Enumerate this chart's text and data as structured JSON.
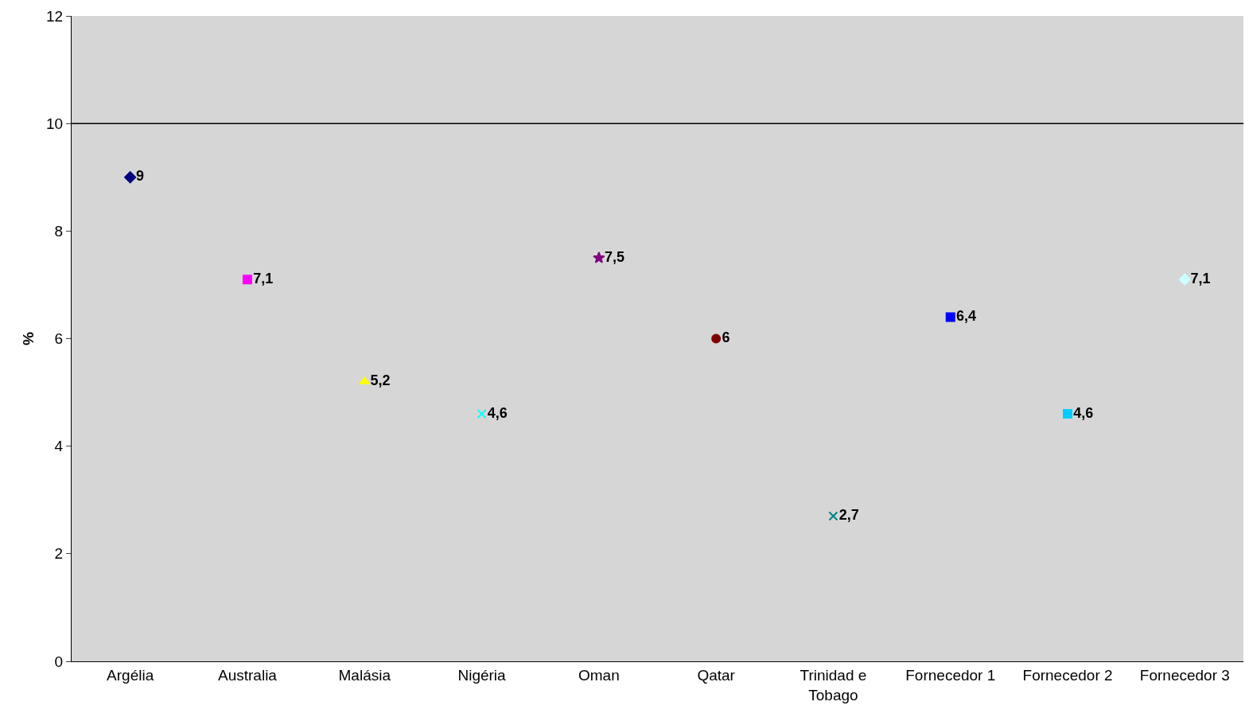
{
  "chart_data": {
    "type": "scatter",
    "ylabel": "%",
    "categories": [
      "Argélia",
      "Australia",
      "Malásia",
      "Nigéria",
      "Oman",
      "Qatar",
      "Trinidad e Tobago",
      "Fornecedor 1",
      "Fornecedor 2",
      "Fornecedor 3"
    ],
    "series": [
      {
        "color": "#000080",
        "marker": "diamond",
        "values": [
          9,
          null,
          null,
          null,
          null,
          null,
          null,
          null,
          null,
          null
        ],
        "value_labels": [
          "9",
          null,
          null,
          null,
          null,
          null,
          null,
          null,
          null,
          null
        ]
      },
      {
        "color": "#ff00ff",
        "marker": "square",
        "values": [
          null,
          7.1,
          null,
          null,
          null,
          null,
          null,
          null,
          null,
          null
        ],
        "value_labels": [
          null,
          "7,1",
          null,
          null,
          null,
          null,
          null,
          null,
          null,
          null
        ]
      },
      {
        "color": "#ffff00",
        "marker": "triangle",
        "values": [
          null,
          null,
          5.2,
          null,
          null,
          null,
          null,
          null,
          null,
          null
        ],
        "value_labels": [
          null,
          null,
          "5,2",
          null,
          null,
          null,
          null,
          null,
          null,
          null
        ]
      },
      {
        "color": "#00ffff",
        "marker": "cross",
        "values": [
          null,
          null,
          null,
          4.6,
          null,
          null,
          null,
          null,
          null,
          null
        ],
        "value_labels": [
          null,
          null,
          null,
          "4,6",
          null,
          null,
          null,
          null,
          null,
          null
        ]
      },
      {
        "color": "#800080",
        "marker": "star",
        "values": [
          null,
          null,
          null,
          null,
          7.5,
          null,
          null,
          null,
          null,
          null
        ],
        "value_labels": [
          null,
          null,
          null,
          null,
          "7,5",
          null,
          null,
          null,
          null,
          null
        ]
      },
      {
        "color": "#800000",
        "marker": "circle",
        "values": [
          null,
          null,
          null,
          null,
          null,
          6,
          null,
          null,
          null,
          null
        ],
        "value_labels": [
          null,
          null,
          null,
          null,
          null,
          "6",
          null,
          null,
          null,
          null
        ]
      },
      {
        "color": "#008080",
        "marker": "cross",
        "values": [
          null,
          null,
          null,
          null,
          null,
          null,
          2.7,
          null,
          null,
          null
        ],
        "value_labels": [
          null,
          null,
          null,
          null,
          null,
          null,
          "2,7",
          null,
          null,
          null
        ]
      },
      {
        "color": "#0000ff",
        "marker": "square",
        "values": [
          null,
          null,
          null,
          null,
          null,
          null,
          null,
          6.4,
          null,
          null
        ],
        "value_labels": [
          null,
          null,
          null,
          null,
          null,
          null,
          null,
          "6,4",
          null,
          null
        ]
      },
      {
        "color": "#00ccff",
        "marker": "square",
        "values": [
          null,
          null,
          null,
          null,
          null,
          null,
          null,
          null,
          4.6,
          null
        ],
        "value_labels": [
          null,
          null,
          null,
          null,
          null,
          null,
          null,
          null,
          "4,6",
          null
        ]
      },
      {
        "color": "#ccffff",
        "marker": "diamond",
        "values": [
          null,
          null,
          null,
          null,
          null,
          null,
          null,
          null,
          null,
          7.1
        ],
        "value_labels": [
          null,
          null,
          null,
          null,
          null,
          null,
          null,
          null,
          null,
          "7,1"
        ]
      }
    ],
    "ylim": [
      0,
      12
    ],
    "yticks": [
      0,
      2,
      4,
      6,
      8,
      10,
      12
    ],
    "ref_lines": [
      {
        "axis": "y",
        "value": 10,
        "label": null,
        "color": "#000000"
      }
    ],
    "grid": false
  }
}
